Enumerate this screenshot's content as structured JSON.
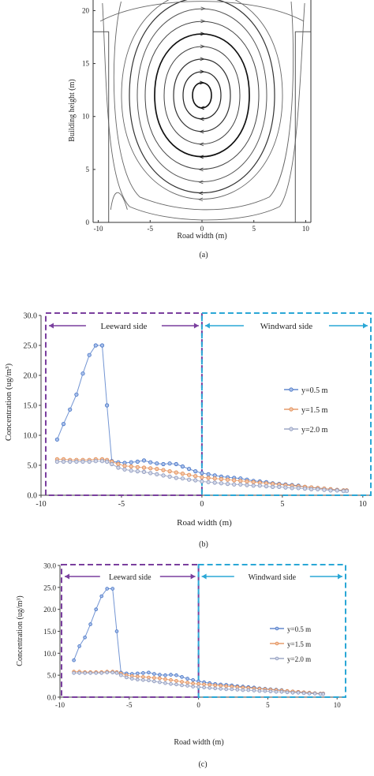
{
  "panels": {
    "a": {
      "label": "(a)"
    },
    "b": {
      "label": "(b)"
    },
    "c": {
      "label": "(c)"
    }
  },
  "chart_data": [
    {
      "type": "streamline",
      "xlabel": "Road width (m)",
      "ylabel": "Building height (m)",
      "xlim": [
        -10.5,
        10.5
      ],
      "ylim": [
        0,
        21
      ],
      "xticks": [
        "-10",
        "-5",
        "0",
        "5",
        "10"
      ],
      "yticks": [
        "0",
        "5",
        "10",
        "15",
        "20"
      ],
      "vortex_center": [
        0,
        12
      ],
      "building_height": 18,
      "street_half_width": 9
    },
    {
      "type": "line",
      "xlabel": "Road width (m)",
      "ylabel": "Concentration (ug/m³)",
      "xlim": [
        -10,
        10.5
      ],
      "ylim": [
        0,
        30
      ],
      "xticks": [
        "-10",
        "-5",
        "0",
        "5",
        "10"
      ],
      "yticks": [
        "0.0",
        "5.0",
        "10.0",
        "15.0",
        "20.0",
        "25.0",
        "30.0"
      ],
      "regions": [
        {
          "label": "Leeward side",
          "color": "#7a3f9e"
        },
        {
          "label": "Windward side",
          "color": "#2aa7d6"
        }
      ],
      "legend_position": "right",
      "series": [
        {
          "name": "y=0.5 m",
          "color": "#4472c4",
          "marker_face": "#a9c0ea",
          "x": [
            -9.0,
            -8.6,
            -8.2,
            -7.8,
            -7.4,
            -7.0,
            -6.6,
            -6.2,
            -5.9,
            -5.6,
            -5.2,
            -4.8,
            -4.4,
            -4.0,
            -3.6,
            -3.2,
            -2.8,
            -2.4,
            -2.0,
            -1.6,
            -1.2,
            -0.8,
            -0.4,
            0.0,
            0.4,
            0.8,
            1.2,
            1.6,
            2.0,
            2.4,
            2.8,
            3.2,
            3.6,
            4.0,
            4.4,
            4.8,
            5.2,
            5.6,
            6.0,
            6.4,
            6.8,
            7.2,
            7.6,
            8.0,
            8.4,
            8.8,
            9.0
          ],
          "y": [
            9.3,
            11.9,
            14.3,
            16.8,
            20.3,
            23.4,
            25.0,
            25.0,
            15.0,
            5.7,
            5.5,
            5.4,
            5.5,
            5.6,
            5.8,
            5.5,
            5.3,
            5.2,
            5.3,
            5.2,
            4.8,
            4.4,
            4.0,
            3.7,
            3.5,
            3.3,
            3.1,
            3.0,
            2.9,
            2.8,
            2.6,
            2.4,
            2.3,
            2.2,
            2.0,
            1.9,
            1.8,
            1.7,
            1.6,
            1.4,
            1.3,
            1.2,
            1.1,
            1.0,
            0.9,
            0.8,
            0.8
          ]
        },
        {
          "name": "y=1.5 m",
          "color": "#e0894f",
          "marker_face": "#f4c6a8",
          "x": [
            -9.0,
            -8.6,
            -8.2,
            -7.8,
            -7.4,
            -7.0,
            -6.6,
            -6.2,
            -5.9,
            -5.6,
            -5.2,
            -4.8,
            -4.4,
            -4.0,
            -3.6,
            -3.2,
            -2.8,
            -2.4,
            -2.0,
            -1.6,
            -1.2,
            -0.8,
            -0.4,
            0.0,
            0.4,
            0.8,
            1.2,
            1.6,
            2.0,
            2.4,
            2.8,
            3.2,
            3.6,
            4.0,
            4.4,
            4.8,
            5.2,
            5.6,
            6.0,
            6.4,
            6.8,
            7.2,
            7.6,
            8.0,
            8.4,
            8.8,
            9.0
          ],
          "y": [
            6.0,
            6.0,
            5.9,
            5.9,
            5.9,
            5.9,
            6.0,
            6.0,
            5.9,
            5.6,
            5.2,
            4.9,
            4.8,
            4.7,
            4.6,
            4.5,
            4.4,
            4.2,
            4.0,
            3.8,
            3.6,
            3.4,
            3.2,
            3.0,
            2.9,
            2.8,
            2.7,
            2.6,
            2.5,
            2.4,
            2.3,
            2.2,
            2.1,
            2.0,
            1.9,
            1.8,
            1.7,
            1.6,
            1.5,
            1.4,
            1.3,
            1.2,
            1.1,
            1.0,
            0.9,
            0.8,
            0.8
          ]
        },
        {
          "name": "y=2.0 m",
          "color": "#8a96bb",
          "marker_face": "#d3d8e8",
          "x": [
            -9.0,
            -8.6,
            -8.2,
            -7.8,
            -7.4,
            -7.0,
            -6.6,
            -6.2,
            -5.9,
            -5.6,
            -5.2,
            -4.8,
            -4.4,
            -4.0,
            -3.6,
            -3.2,
            -2.8,
            -2.4,
            -2.0,
            -1.6,
            -1.2,
            -0.8,
            -0.4,
            0.0,
            0.4,
            0.8,
            1.2,
            1.6,
            2.0,
            2.4,
            2.8,
            3.2,
            3.6,
            4.0,
            4.4,
            4.8,
            5.2,
            5.6,
            6.0,
            6.4,
            6.8,
            7.2,
            7.6,
            8.0,
            8.4,
            8.8,
            9.0
          ],
          "y": [
            5.6,
            5.6,
            5.6,
            5.6,
            5.6,
            5.6,
            5.7,
            5.7,
            5.6,
            5.2,
            4.6,
            4.3,
            4.1,
            4.0,
            3.9,
            3.7,
            3.5,
            3.3,
            3.1,
            2.9,
            2.8,
            2.6,
            2.5,
            2.3,
            2.2,
            2.1,
            2.0,
            1.9,
            1.8,
            1.8,
            1.7,
            1.6,
            1.6,
            1.5,
            1.4,
            1.4,
            1.3,
            1.2,
            1.2,
            1.1,
            1.0,
            1.0,
            0.9,
            0.8,
            0.8,
            0.7,
            0.7
          ]
        }
      ]
    },
    {
      "type": "line",
      "xlabel": "Road width (m)",
      "ylabel": "Concentration (ug/m³)",
      "xlim": [
        -10,
        10.5
      ],
      "ylim": [
        0,
        30
      ],
      "xticks": [
        "-10",
        "-5",
        "0",
        "5",
        "10"
      ],
      "yticks": [
        "0.0",
        "5.0",
        "10.0",
        "15.0",
        "20.0",
        "25.0",
        "30.0"
      ],
      "regions": [
        {
          "label": "Leeward side",
          "color": "#7a3f9e"
        },
        {
          "label": "Windward side",
          "color": "#2aa7d6"
        }
      ],
      "legend_position": "right",
      "series": [
        {
          "name": "y=0.5 m",
          "color": "#4472c4",
          "marker_face": "#a9c0ea",
          "x": [
            -9.0,
            -8.6,
            -8.2,
            -7.8,
            -7.4,
            -7.0,
            -6.6,
            -6.2,
            -5.9,
            -5.6,
            -5.2,
            -4.8,
            -4.4,
            -4.0,
            -3.6,
            -3.2,
            -2.8,
            -2.4,
            -2.0,
            -1.6,
            -1.2,
            -0.8,
            -0.4,
            0.0,
            0.4,
            0.8,
            1.2,
            1.6,
            2.0,
            2.4,
            2.8,
            3.2,
            3.6,
            4.0,
            4.4,
            4.8,
            5.2,
            5.6,
            6.0,
            6.4,
            6.8,
            7.2,
            7.6,
            8.0,
            8.4,
            8.8,
            9.0
          ],
          "y": [
            8.4,
            11.6,
            13.6,
            16.6,
            20.0,
            23.0,
            24.7,
            24.7,
            15.0,
            5.6,
            5.4,
            5.3,
            5.4,
            5.5,
            5.6,
            5.3,
            5.1,
            5.0,
            5.1,
            5.0,
            4.6,
            4.2,
            3.9,
            3.6,
            3.4,
            3.2,
            3.0,
            2.9,
            2.8,
            2.7,
            2.5,
            2.4,
            2.3,
            2.2,
            2.0,
            1.9,
            1.8,
            1.7,
            1.6,
            1.4,
            1.3,
            1.2,
            1.1,
            1.0,
            0.9,
            0.8,
            0.8
          ]
        },
        {
          "name": "y=1.5 m",
          "color": "#e0894f",
          "marker_face": "#f4c6a8",
          "x": [
            -9.0,
            -8.6,
            -8.2,
            -7.8,
            -7.4,
            -7.0,
            -6.6,
            -6.2,
            -5.9,
            -5.6,
            -5.2,
            -4.8,
            -4.4,
            -4.0,
            -3.6,
            -3.2,
            -2.8,
            -2.4,
            -2.0,
            -1.6,
            -1.2,
            -0.8,
            -0.4,
            0.0,
            0.4,
            0.8,
            1.2,
            1.6,
            2.0,
            2.4,
            2.8,
            3.2,
            3.6,
            4.0,
            4.4,
            4.8,
            5.2,
            5.6,
            6.0,
            6.4,
            6.8,
            7.2,
            7.6,
            8.0,
            8.4,
            8.8,
            9.0
          ],
          "y": [
            5.8,
            5.8,
            5.7,
            5.7,
            5.7,
            5.7,
            5.8,
            5.8,
            5.7,
            5.4,
            5.0,
            4.8,
            4.7,
            4.6,
            4.5,
            4.4,
            4.3,
            4.1,
            3.9,
            3.7,
            3.5,
            3.3,
            3.1,
            3.0,
            2.9,
            2.8,
            2.7,
            2.6,
            2.5,
            2.4,
            2.3,
            2.2,
            2.1,
            2.0,
            1.9,
            1.8,
            1.7,
            1.6,
            1.5,
            1.4,
            1.3,
            1.2,
            1.1,
            1.0,
            0.9,
            0.8,
            0.8
          ]
        },
        {
          "name": "y=2.0 m",
          "color": "#8a96bb",
          "marker_face": "#d3d8e8",
          "x": [
            -9.0,
            -8.6,
            -8.2,
            -7.8,
            -7.4,
            -7.0,
            -6.6,
            -6.2,
            -5.9,
            -5.6,
            -5.2,
            -4.8,
            -4.4,
            -4.0,
            -3.6,
            -3.2,
            -2.8,
            -2.4,
            -2.0,
            -1.6,
            -1.2,
            -0.8,
            -0.4,
            0.0,
            0.4,
            0.8,
            1.2,
            1.6,
            2.0,
            2.4,
            2.8,
            3.2,
            3.6,
            4.0,
            4.4,
            4.8,
            5.2,
            5.6,
            6.0,
            6.4,
            6.8,
            7.2,
            7.6,
            8.0,
            8.4,
            8.8,
            9.0
          ],
          "y": [
            5.5,
            5.5,
            5.5,
            5.5,
            5.5,
            5.5,
            5.6,
            5.6,
            5.5,
            5.0,
            4.5,
            4.2,
            4.0,
            3.9,
            3.8,
            3.6,
            3.4,
            3.2,
            3.0,
            2.9,
            2.7,
            2.6,
            2.4,
            2.3,
            2.2,
            2.1,
            2.0,
            1.9,
            1.8,
            1.8,
            1.7,
            1.6,
            1.6,
            1.5,
            1.4,
            1.4,
            1.3,
            1.2,
            1.2,
            1.1,
            1.0,
            1.0,
            0.9,
            0.8,
            0.8,
            0.7,
            0.7
          ]
        }
      ]
    }
  ]
}
